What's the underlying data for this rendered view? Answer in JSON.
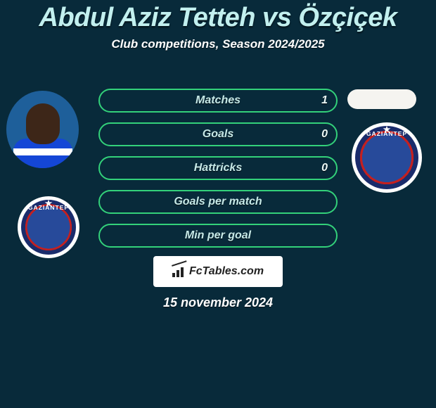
{
  "colors": {
    "background": "#082a3a",
    "title": "#c2f0ef",
    "pill_border": "#33d17a",
    "pill_text": "#c6e9e7",
    "attribution_bg": "#ffffff",
    "attribution_text": "#222222"
  },
  "title": "Abdul Aziz Tetteh vs Özçiçek",
  "subtitle": "Club competitions, Season 2024/2025",
  "date": "15 november 2024",
  "attribution": "FcTables.com",
  "stats": [
    {
      "label": "Matches",
      "left_value": "1"
    },
    {
      "label": "Goals",
      "left_value": "0"
    },
    {
      "label": "Hattricks",
      "left_value": "0"
    },
    {
      "label": "Goals per match",
      "left_value": ""
    },
    {
      "label": "Min per goal",
      "left_value": ""
    }
  ],
  "badges": {
    "left": {
      "text_top": "GAZIANTEP"
    },
    "right": {
      "text_top": "GAZIANTEP"
    }
  }
}
